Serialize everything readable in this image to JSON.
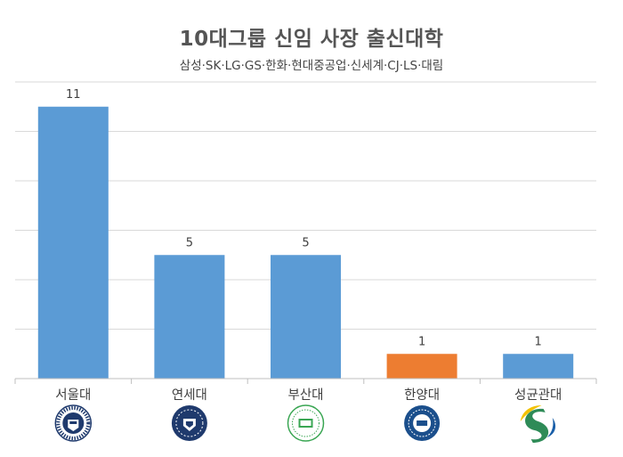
{
  "chart_data": {
    "type": "bar",
    "title": "10대그룹 신임 사장 출신대학",
    "subtitle": "삼성·SK·LG·GS·한화·현대중공업·신세계·CJ·LS·대림",
    "categories": [
      "서울대",
      "연세대",
      "부산대",
      "한양대",
      "성균관대"
    ],
    "values": [
      11,
      5,
      5,
      1,
      1
    ],
    "bar_colors": [
      "#5b9bd5",
      "#5b9bd5",
      "#5b9bd5",
      "#ed7d31",
      "#5b9bd5"
    ],
    "ylim": [
      0,
      12
    ],
    "grid": true,
    "xlabel": "",
    "ylabel": "",
    "logos": [
      {
        "icon": "seoul-national-university-emblem",
        "colors": [
          "#1f3a6d",
          "#ffffff"
        ]
      },
      {
        "icon": "yonsei-university-emblem",
        "colors": [
          "#1f3a6d",
          "#ffffff"
        ]
      },
      {
        "icon": "pusan-national-university-emblem",
        "colors": [
          "#3aa653",
          "#ffffff"
        ]
      },
      {
        "icon": "hanyang-university-emblem",
        "colors": [
          "#1b4f8c",
          "#ffffff"
        ]
      },
      {
        "icon": "sungkyunkwan-university-emblem",
        "colors": [
          "#2e8b57",
          "#f2c200",
          "#1a5fa8"
        ]
      }
    ]
  }
}
